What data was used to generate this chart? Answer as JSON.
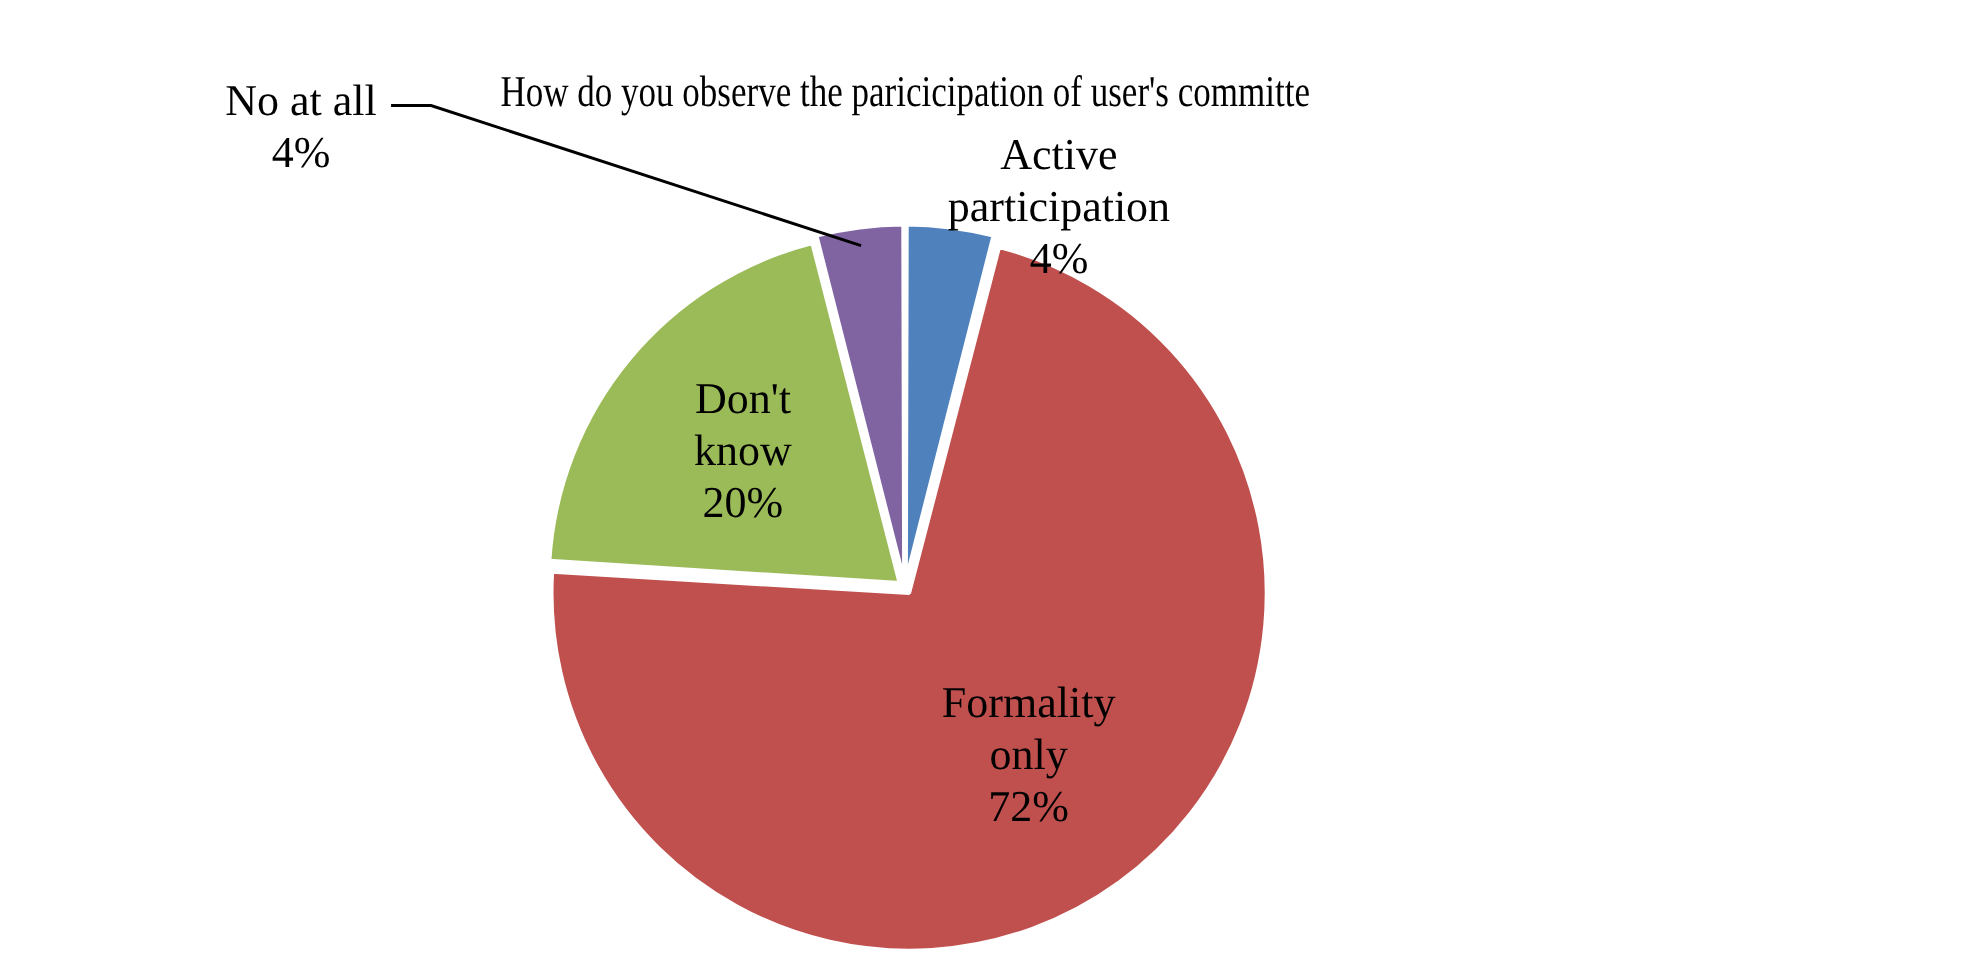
{
  "chart_data": {
    "type": "pie",
    "title": "How do you observe the paricicipation of user's committe",
    "categories": [
      "Active participation",
      "Formality only",
      "Don't know",
      "No at all"
    ],
    "values": [
      4,
      72,
      20,
      4
    ],
    "colors": [
      "#4f81bd",
      "#c0504d",
      "#9bbb59",
      "#8064a2"
    ],
    "value_labels": [
      "4%",
      "72%",
      "20%",
      "4%"
    ],
    "legend": false
  }
}
